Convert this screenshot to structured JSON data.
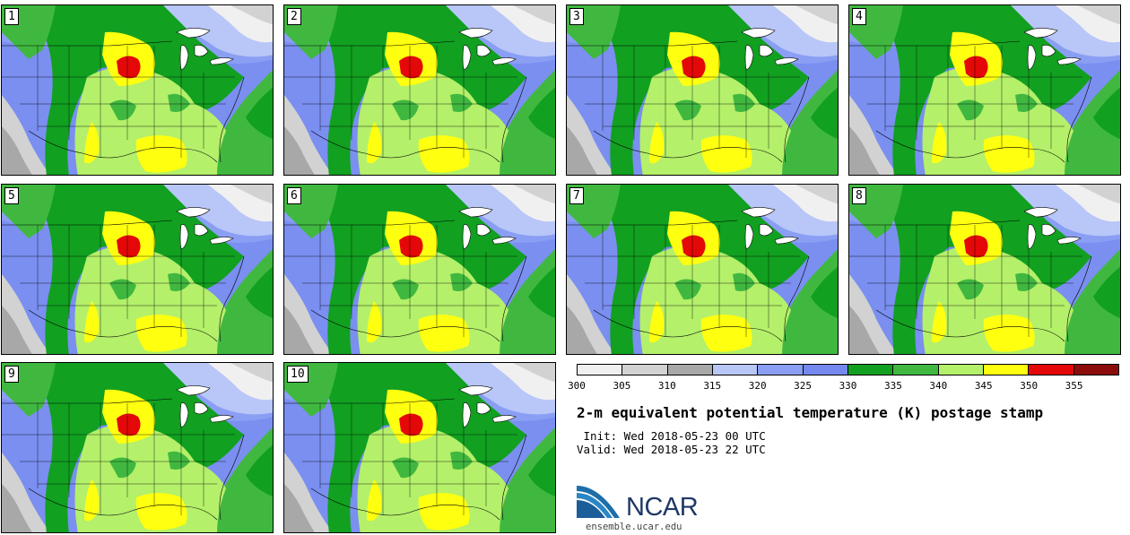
{
  "panels": [
    "1",
    "2",
    "3",
    "4",
    "5",
    "6",
    "7",
    "8",
    "9",
    "10"
  ],
  "colorbar": {
    "colors": [
      "#f0f0f0",
      "#d2d2d2",
      "#a8a8a8",
      "#b8c6f8",
      "#8a9ef4",
      "#7488ee",
      "#11a020",
      "#40b840",
      "#b4f06a",
      "#ffff10",
      "#e40808",
      "#8c0c0c"
    ],
    "ticks": [
      "300",
      "305",
      "310",
      "315",
      "320",
      "325",
      "330",
      "335",
      "340",
      "345",
      "350",
      "355"
    ]
  },
  "title": "2-m equivalent potential temperature (K) postage stamp",
  "init": " Init: Wed 2018-05-23 00 UTC",
  "valid": "Valid: Wed 2018-05-23 22 UTC",
  "logo": {
    "name": "NCAR",
    "url": "ensemble.ucar.edu"
  }
}
